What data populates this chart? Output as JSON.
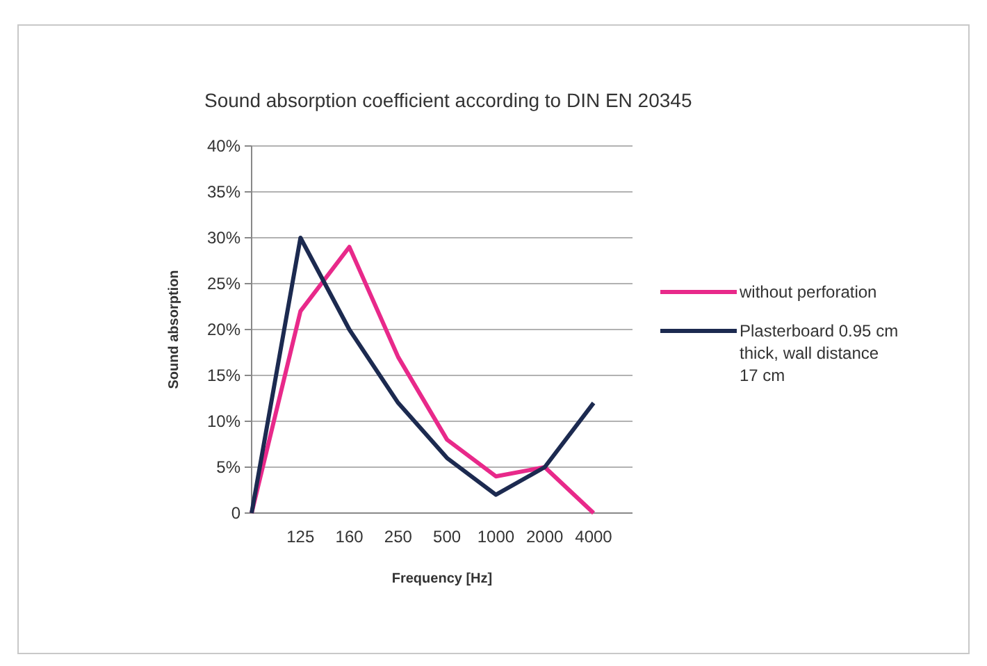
{
  "chart_data": {
    "type": "line",
    "title": "Sound absorption coefficient according to DIN EN 20345",
    "xlabel": "Frequency [Hz]",
    "ylabel": "Sound absorption",
    "categories": [
      null,
      "125",
      "160",
      "250",
      "500",
      "1000",
      "2000",
      "4000"
    ],
    "series": [
      {
        "name": "without perforation",
        "color": "#e8298a",
        "values": [
          0,
          22,
          29,
          17,
          8,
          4,
          5,
          0
        ]
      },
      {
        "name": "Plasterboard 0.95 cm thick, wall distance 17 cm",
        "color": "#1c2a50",
        "values": [
          0,
          30,
          20,
          12,
          6,
          2,
          5,
          12
        ]
      }
    ],
    "ylim": [
      0,
      40
    ],
    "yticks": [
      0,
      {
        "value": 5,
        "label": "5%"
      },
      {
        "value": 10,
        "label": "10%"
      },
      {
        "value": 15,
        "label": "15%"
      },
      {
        "value": 20,
        "label": "20%"
      },
      {
        "value": 25,
        "label": "25%"
      },
      {
        "value": 30,
        "label": "30%"
      },
      {
        "value": 35,
        "label": "35%"
      },
      {
        "value": 40,
        "label": "40%"
      }
    ],
    "grid": "y",
    "legend": "right",
    "marker": "none",
    "line_style": "solid"
  }
}
